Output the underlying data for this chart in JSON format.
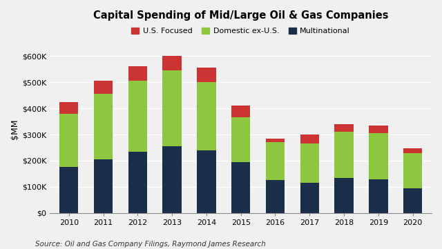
{
  "years": [
    2010,
    2011,
    2012,
    2013,
    2014,
    2015,
    2016,
    2017,
    2018,
    2019,
    2020
  ],
  "multinational": [
    175000,
    205000,
    235000,
    255000,
    240000,
    195000,
    125000,
    115000,
    135000,
    130000,
    95000
  ],
  "domestic_ex_us": [
    205000,
    250000,
    270000,
    290000,
    260000,
    170000,
    145000,
    150000,
    175000,
    175000,
    135000
  ],
  "us_focused": [
    45000,
    50000,
    55000,
    55000,
    55000,
    45000,
    15000,
    35000,
    30000,
    30000,
    18000
  ],
  "colors": {
    "multinational": "#1a2e4a",
    "domestic_ex_us": "#8dc63f",
    "us_focused": "#cc3333"
  },
  "title": "Capital Spending of Mid/Large Oil & Gas Companies",
  "ylabel": "$MM",
  "ylim": [
    0,
    640000
  ],
  "yticks": [
    0,
    100000,
    200000,
    300000,
    400000,
    500000,
    600000
  ],
  "ytick_labels": [
    "$0",
    "$100K",
    "$200K",
    "$300K",
    "$400K",
    "$500K",
    "$600K"
  ],
  "legend_labels": [
    "U.S. Focused",
    "Domestic ex-U.S.",
    "Multinational"
  ],
  "source_text": "Source: Oil and Gas Company Filings, Raymond James Research",
  "background_color": "#f0f0f0",
  "plot_bg_color": "#f0f0f0",
  "grid_color": "#ffffff"
}
